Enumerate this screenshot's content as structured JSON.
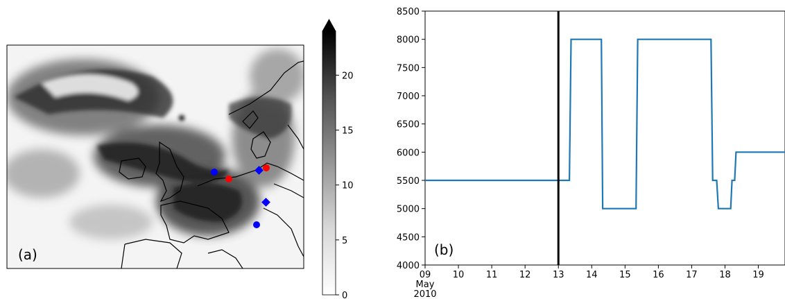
{
  "figure": {
    "panel_a_label": "(a)",
    "panel_b_label": "(b)"
  },
  "chart_data": [
    {
      "type": "heatmap",
      "title": "",
      "panel_label": "(a)",
      "description": "Greyscale map of Western Europe; darker = higher value",
      "colorbar": {
        "range": [
          0,
          24
        ],
        "extend": "max",
        "ticks": [
          0,
          5,
          10,
          15,
          20
        ],
        "tick_labels": [
          "0",
          "5",
          "10",
          "15",
          "20"
        ],
        "colormap": "Greys"
      },
      "markers": [
        {
          "shape": "circle",
          "color": "#0000ff"
        },
        {
          "shape": "circle",
          "color": "#ff0000"
        },
        {
          "shape": "diamond",
          "color": "#0000ff"
        },
        {
          "shape": "circle",
          "color": "#ff0000"
        },
        {
          "shape": "diamond",
          "color": "#0000ff"
        },
        {
          "shape": "circle",
          "color": "#0000ff"
        }
      ]
    },
    {
      "type": "line",
      "title": "",
      "panel_label": "(b)",
      "xlabel": "",
      "ylabel": "",
      "xlim": [
        9.0,
        19.8
      ],
      "ylim": [
        4000,
        8500
      ],
      "x_ticks": [
        9,
        10,
        11,
        12,
        13,
        14,
        15,
        16,
        17,
        18,
        19
      ],
      "x_tick_labels": [
        "09\nMay\n2010",
        "10",
        "11",
        "12",
        "13",
        "14",
        "15",
        "16",
        "17",
        "18",
        "19"
      ],
      "y_ticks": [
        4000,
        4500,
        5000,
        5500,
        6000,
        6500,
        7000,
        7500,
        8000,
        8500
      ],
      "y_tick_labels": [
        "4000",
        "4500",
        "5000",
        "5500",
        "6000",
        "6500",
        "7000",
        "7500",
        "8000",
        "8500"
      ],
      "vertical_line_x": 13.0,
      "series": [
        {
          "color": "#1f77b4",
          "x": [
            9.0,
            13.33,
            13.38,
            14.29,
            14.33,
            15.33,
            15.38,
            17.58,
            17.63,
            17.75,
            17.8,
            18.17,
            18.21,
            18.29,
            18.33,
            19.8
          ],
          "y": [
            5500,
            5500,
            8000,
            8000,
            5000,
            5000,
            8000,
            8000,
            5500,
            5500,
            5000,
            5000,
            5500,
            5500,
            6000,
            6000
          ]
        }
      ]
    }
  ]
}
